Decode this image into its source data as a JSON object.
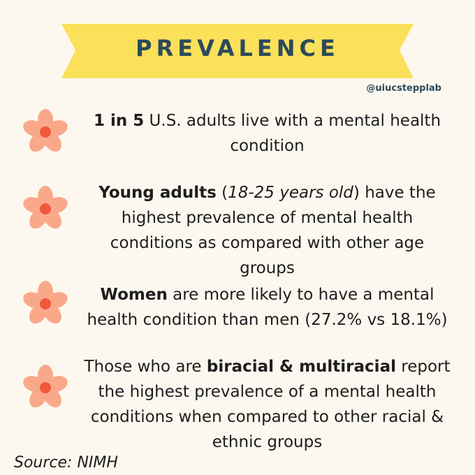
{
  "title": "PREVALENCE",
  "handle": "@uiucstepplab",
  "items": [
    {
      "parts": [
        {
          "text": "1 in 5",
          "style": "bold"
        },
        {
          "text": " U.S. adults live with a mental health condition"
        }
      ]
    },
    {
      "parts": [
        {
          "text": "Young adults",
          "style": "bold"
        },
        {
          "text": " ("
        },
        {
          "text": "18-25 years old",
          "style": "italic"
        },
        {
          "text": ") have the highest prevalence of mental health conditions as compared with other age groups"
        }
      ]
    },
    {
      "parts": [
        {
          "text": "Women",
          "style": "bold"
        },
        {
          "text": " are more likely to have a mental health condition than men (27.2% vs 18.1%)"
        }
      ]
    },
    {
      "parts": [
        {
          "text": "Those who are "
        },
        {
          "text": "biracial & multiracial",
          "style": "bold"
        },
        {
          "text": " report the highest prevalence of a mental health conditions when compared to other racial & ethnic groups"
        }
      ]
    }
  ],
  "source": "Source: NIMH"
}
